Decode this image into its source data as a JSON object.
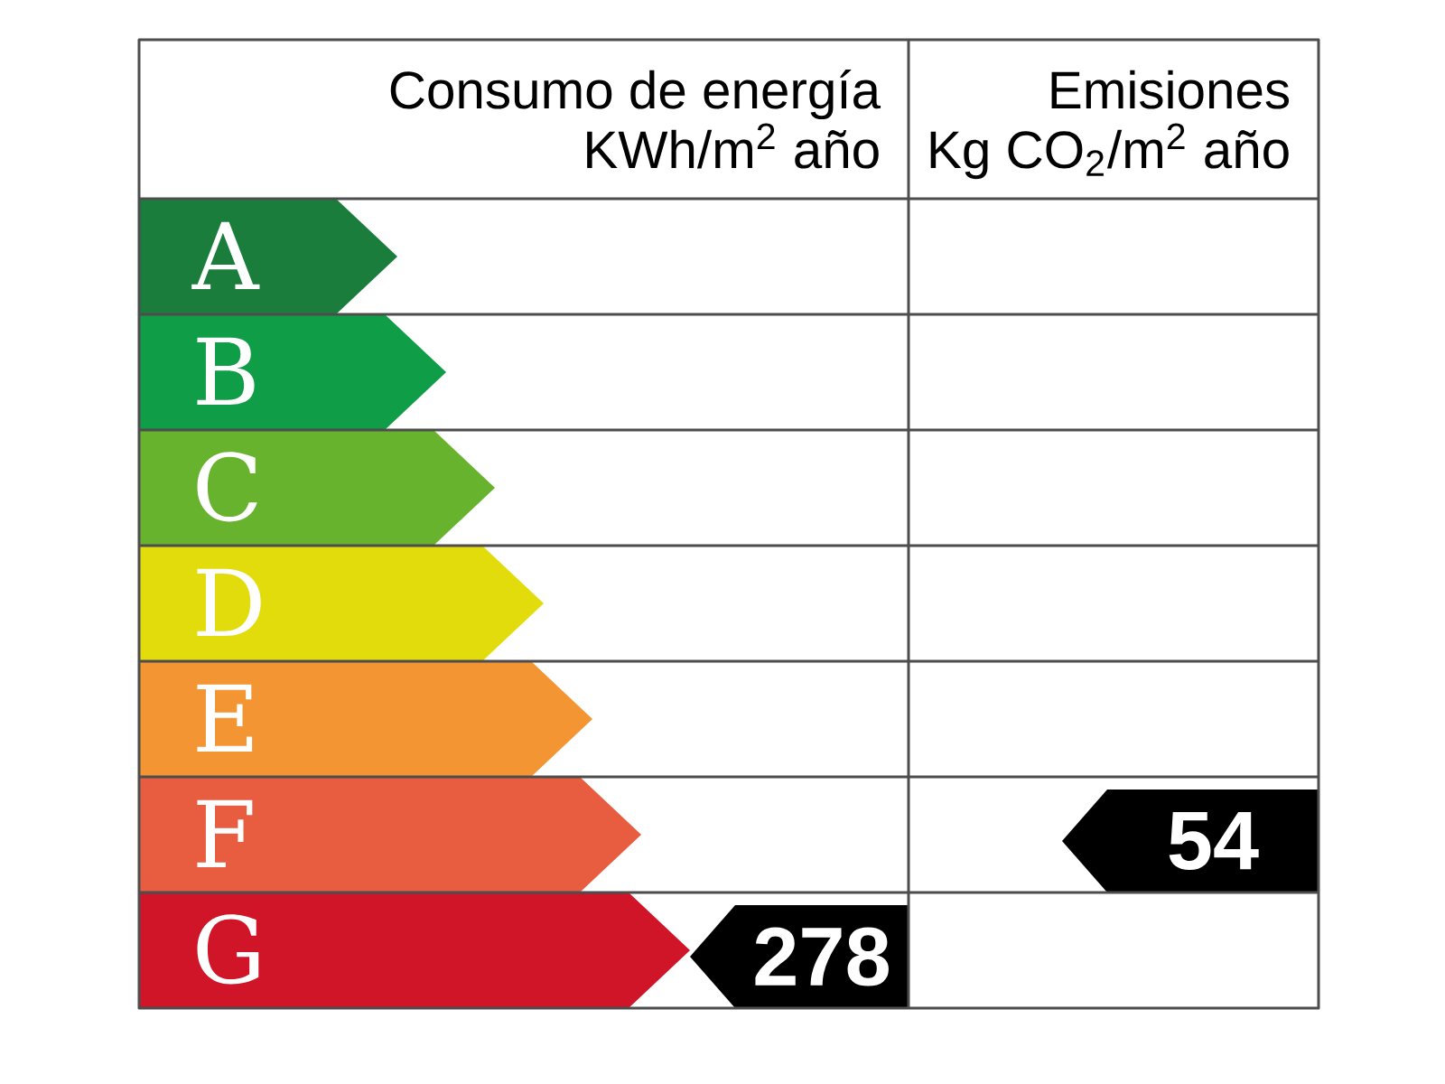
{
  "chart_data": {
    "type": "other",
    "categories": [
      "A",
      "B",
      "C",
      "D",
      "E",
      "F",
      "G"
    ],
    "colors": [
      "#1a7d3c",
      "#0f9d48",
      "#67b32e",
      "#e3dc0c",
      "#f29532",
      "#e85d40",
      "#d11528"
    ],
    "series": [
      {
        "color": "#000000",
        "values": [
          null,
          null,
          null,
          null,
          null,
          null,
          278
        ]
      },
      {
        "color": "#000000",
        "values": [
          null,
          null,
          null,
          null,
          null,
          54,
          null
        ]
      }
    ],
    "annotations": [
      "Consumo de energía",
      "KWh/m$^{2}$ año",
      "Emisiones",
      "Kg CO$_{2}$/m$^{2}$ año"
    ],
    "data_labels": true
  }
}
